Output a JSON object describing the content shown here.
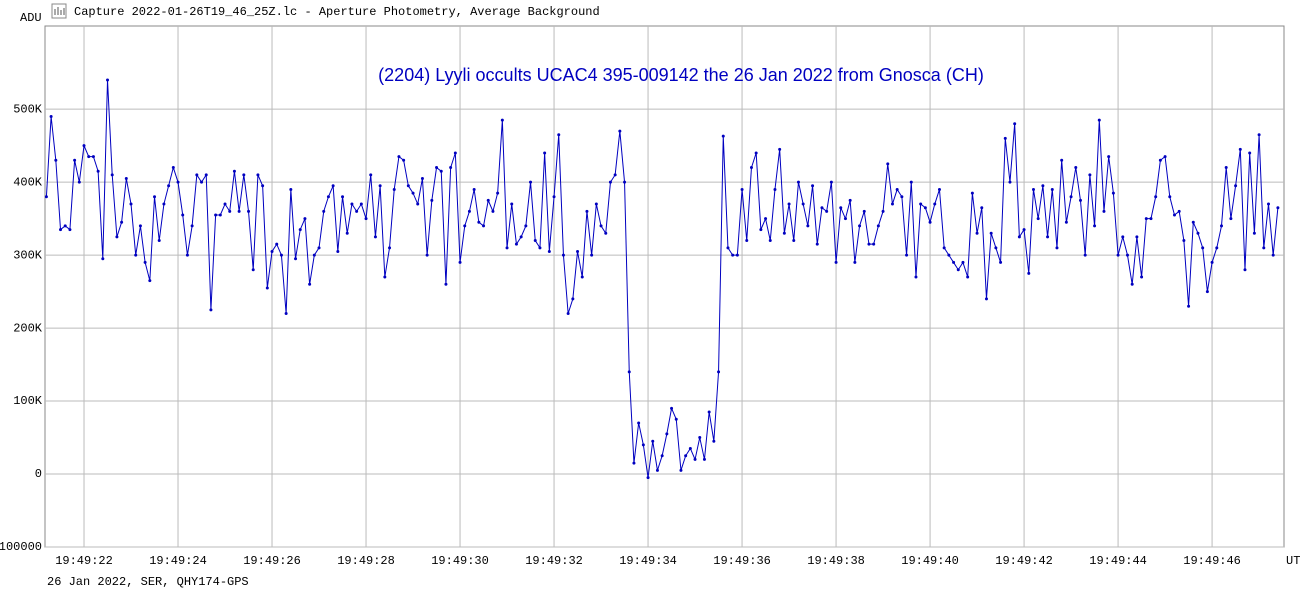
{
  "chart_data": {
    "type": "line",
    "title": "Capture 2022-01-26T19_46_25Z.lc - Aperture Photometry, Average Background",
    "annotation": "(2204) Lyyli occults UCAC4 395-009142 the 26 Jan 2022 from Gnosca (CH)",
    "footer": "26 Jan 2022, SER, QHY174-GPS",
    "ylabel": "ADU",
    "xlabel": "UT",
    "color": "#0000c0",
    "grid": true,
    "xlim": [
      21.17,
      47.53
    ],
    "ylim": [
      -100000,
      614000
    ],
    "xticks": [
      {
        "value": 22,
        "label": "19:49:22"
      },
      {
        "value": 24,
        "label": "19:49:24"
      },
      {
        "value": 26,
        "label": "19:49:26"
      },
      {
        "value": 28,
        "label": "19:49:28"
      },
      {
        "value": 30,
        "label": "19:49:30"
      },
      {
        "value": 32,
        "label": "19:49:32"
      },
      {
        "value": 34,
        "label": "19:49:34"
      },
      {
        "value": 36,
        "label": "19:49:36"
      },
      {
        "value": 38,
        "label": "19:49:38"
      },
      {
        "value": 40,
        "label": "19:49:40"
      },
      {
        "value": 42,
        "label": "19:49:42"
      },
      {
        "value": 44,
        "label": "19:49:44"
      },
      {
        "value": 46,
        "label": "19:49:46"
      }
    ],
    "yticks": [
      {
        "value": -100000,
        "label": "-100000"
      },
      0,
      {
        "value": 100000,
        "label": "100K"
      },
      {
        "value": 200000,
        "label": "200K"
      },
      {
        "value": 300000,
        "label": "300K"
      },
      {
        "value": 400000,
        "label": "400K"
      },
      {
        "value": 500000,
        "label": "500K"
      }
    ],
    "x": [
      21.2,
      21.3,
      21.4,
      21.5,
      21.6,
      21.7,
      21.8,
      21.9,
      22.0,
      22.1,
      22.2,
      22.3,
      22.4,
      22.5,
      22.6,
      22.7,
      22.8,
      22.9,
      23.0,
      23.1,
      23.2,
      23.3,
      23.4,
      23.5,
      23.6,
      23.7,
      23.8,
      23.9,
      24.0,
      24.1,
      24.2,
      24.3,
      24.4,
      24.5,
      24.6,
      24.7,
      24.8,
      24.9,
      25.0,
      25.1,
      25.2,
      25.3,
      25.4,
      25.5,
      25.6,
      25.7,
      25.8,
      25.9,
      26.0,
      26.1,
      26.2,
      26.3,
      26.4,
      26.5,
      26.6,
      26.7,
      26.8,
      26.9,
      27.0,
      27.1,
      27.2,
      27.3,
      27.4,
      27.5,
      27.6,
      27.7,
      27.8,
      27.9,
      28.0,
      28.1,
      28.2,
      28.3,
      28.4,
      28.5,
      28.6,
      28.7,
      28.8,
      28.9,
      29.0,
      29.1,
      29.2,
      29.3,
      29.4,
      29.5,
      29.6,
      29.7,
      29.8,
      29.9,
      30.0,
      30.1,
      30.2,
      30.3,
      30.4,
      30.5,
      30.6,
      30.7,
      30.8,
      30.9,
      31.0,
      31.1,
      31.2,
      31.3,
      31.4,
      31.5,
      31.6,
      31.7,
      31.8,
      31.9,
      32.0,
      32.1,
      32.2,
      32.3,
      32.4,
      32.5,
      32.6,
      32.7,
      32.8,
      32.9,
      33.0,
      33.1,
      33.2,
      33.3,
      33.4,
      33.5,
      33.6,
      33.7,
      33.8,
      33.9,
      34.0,
      34.1,
      34.2,
      34.3,
      34.4,
      34.5,
      34.6,
      34.7,
      34.8,
      34.9,
      35.0,
      35.1,
      35.2,
      35.3,
      35.4,
      35.5,
      35.6,
      35.7,
      35.8,
      35.9,
      36.0,
      36.1,
      36.2,
      36.3,
      36.4,
      36.5,
      36.6,
      36.7,
      36.8,
      36.9,
      37.0,
      37.1,
      37.2,
      37.3,
      37.4,
      37.5,
      37.6,
      37.7,
      37.8,
      37.9,
      38.0,
      38.1,
      38.2,
      38.3,
      38.4,
      38.5,
      38.6,
      38.7,
      38.8,
      38.9,
      39.0,
      39.1,
      39.2,
      39.3,
      39.4,
      39.5,
      39.6,
      39.7,
      39.8,
      39.9,
      40.0,
      40.1,
      40.2,
      40.3,
      40.4,
      40.5,
      40.6,
      40.7,
      40.8,
      40.9,
      41.0,
      41.1,
      41.2,
      41.3,
      41.4,
      41.5,
      41.6,
      41.7,
      41.8,
      41.9,
      42.0,
      42.1,
      42.2,
      42.3,
      42.4,
      42.5,
      42.6,
      42.7,
      42.8,
      42.9,
      43.0,
      43.1,
      43.2,
      43.3,
      43.4,
      43.5,
      43.6,
      43.7,
      43.8,
      43.9,
      44.0,
      44.1,
      44.2,
      44.3,
      44.4,
      44.5,
      44.6,
      44.7,
      44.8,
      44.9,
      45.0,
      45.1,
      45.2,
      45.3,
      45.4,
      45.5,
      45.6,
      45.7,
      45.8,
      45.9,
      46.0,
      46.1,
      46.2,
      46.3,
      46.4,
      46.5,
      46.6,
      46.7,
      46.8,
      46.9,
      47.0,
      47.1,
      47.2,
      47.3,
      47.4
    ],
    "values": [
      380000,
      490000,
      430000,
      335000,
      340000,
      335000,
      430000,
      400000,
      450000,
      435000,
      435000,
      415000,
      295000,
      540000,
      410000,
      325000,
      345000,
      405000,
      370000,
      300000,
      340000,
      290000,
      265000,
      380000,
      320000,
      370000,
      395000,
      420000,
      400000,
      355000,
      300000,
      340000,
      410000,
      400000,
      410000,
      225000,
      355000,
      355000,
      370000,
      360000,
      415000,
      360000,
      410000,
      360000,
      280000,
      410000,
      395000,
      255000,
      305000,
      315000,
      300000,
      220000,
      390000,
      295000,
      335000,
      350000,
      260000,
      300000,
      310000,
      360000,
      380000,
      395000,
      305000,
      380000,
      330000,
      370000,
      360000,
      370000,
      350000,
      410000,
      325000,
      395000,
      270000,
      310000,
      390000,
      435000,
      430000,
      395000,
      385000,
      370000,
      405000,
      300000,
      375000,
      420000,
      415000,
      260000,
      420000,
      440000,
      290000,
      340000,
      360000,
      390000,
      345000,
      340000,
      375000,
      360000,
      385000,
      485000,
      310000,
      370000,
      315000,
      325000,
      340000,
      400000,
      320000,
      310000,
      440000,
      305000,
      380000,
      465000,
      300000,
      220000,
      240000,
      305000,
      270000,
      360000,
      300000,
      370000,
      340000,
      330000,
      400000,
      410000,
      470000,
      400000,
      140000,
      15000,
      70000,
      40000,
      -5000,
      45000,
      5000,
      25000,
      55000,
      90000,
      75000,
      5000,
      25000,
      35000,
      20000,
      50000,
      20000,
      85000,
      45000,
      140000,
      463000,
      310000,
      300000,
      300000,
      390000,
      320000,
      420000,
      440000,
      335000,
      350000,
      320000,
      390000,
      445000,
      330000,
      370000,
      320000,
      400000,
      370000,
      340000,
      395000,
      315000,
      365000,
      360000,
      400000,
      290000,
      365000,
      350000,
      375000,
      290000,
      340000,
      360000,
      315000,
      315000,
      340000,
      360000,
      425000,
      370000,
      390000,
      380000,
      300000,
      400000,
      270000,
      370000,
      365000,
      345000,
      370000,
      390000,
      310000,
      300000,
      290000,
      280000,
      290000,
      270000,
      385000,
      330000,
      365000,
      240000,
      330000,
      310000,
      290000,
      460000,
      400000,
      480000,
      325000,
      335000,
      275000,
      390000,
      350000,
      395000,
      325000,
      390000,
      310000,
      430000,
      345000,
      380000,
      420000,
      375000,
      300000,
      410000,
      340000,
      485000,
      360000,
      435000,
      385000,
      300000,
      325000,
      300000,
      260000,
      325000,
      270000,
      350000,
      350000,
      380000,
      430000,
      435000,
      380000,
      355000,
      360000,
      320000,
      230000,
      345000,
      330000,
      310000,
      250000,
      290000,
      310000,
      340000,
      420000,
      350000,
      395000,
      445000,
      280000,
      440000,
      330000,
      465000,
      310000,
      370000,
      300000,
      365000
    ]
  }
}
